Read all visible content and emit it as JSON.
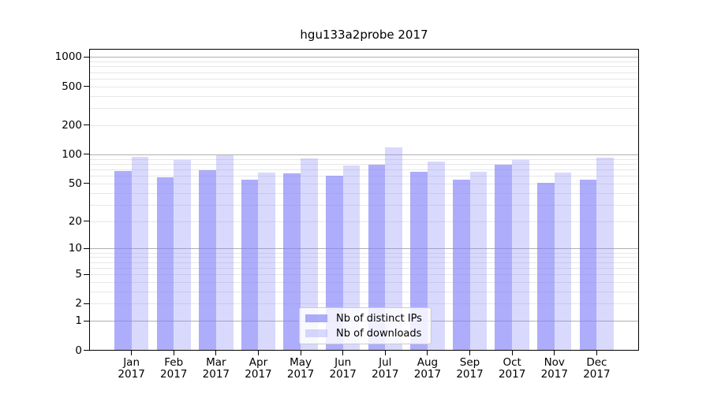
{
  "title": "hgu133a2probe 2017",
  "chart_data": {
    "type": "bar",
    "title": "hgu133a2probe 2017",
    "categories": [
      "Jan",
      "Feb",
      "Mar",
      "Apr",
      "May",
      "Jun",
      "Jul",
      "Aug",
      "Sep",
      "Oct",
      "Nov",
      "Dec"
    ],
    "x_tick_second_line": "2017",
    "series": [
      {
        "name": "Nb of distinct IPs",
        "color": "rgba(130,130,250,0.66)",
        "values": [
          67,
          58,
          69,
          55,
          64,
          60,
          79,
          66,
          55,
          78,
          51,
          55
        ]
      },
      {
        "name": "Nb of downloads",
        "color": "rgba(130,130,250,0.30)",
        "values": [
          95,
          88,
          98,
          65,
          91,
          77,
          118,
          85,
          66,
          87,
          65,
          93
        ]
      }
    ],
    "y_axis": {
      "scale": "log10(1+x)",
      "tick_values": [
        0,
        1,
        2,
        5,
        10,
        20,
        50,
        100,
        200,
        500,
        1000
      ],
      "tick_labels": [
        "0",
        "1",
        "2",
        "5",
        "10",
        "20",
        "50",
        "100",
        "200",
        "500",
        "1000"
      ],
      "major_gridlines": [
        1,
        10,
        100,
        1000
      ],
      "minor_gridlines": [
        2,
        3,
        4,
        5,
        6,
        7,
        8,
        9,
        20,
        30,
        40,
        50,
        60,
        70,
        80,
        90,
        200,
        300,
        400,
        500,
        600,
        700,
        800,
        900
      ],
      "top_value": 1200
    },
    "legend": {
      "position": "lower center",
      "entries": [
        "Nb of distinct IPs",
        "Nb of downloads"
      ]
    },
    "colors": {
      "bar_distinct_ips": "rgba(130,130,250,0.66)",
      "bar_downloads": "rgba(130,130,250,0.30)",
      "grid_major": "#b0b0b0",
      "grid_minor": "#e7e7e7",
      "spine": "#000000",
      "background": "#ffffff",
      "text": "#000000"
    }
  }
}
